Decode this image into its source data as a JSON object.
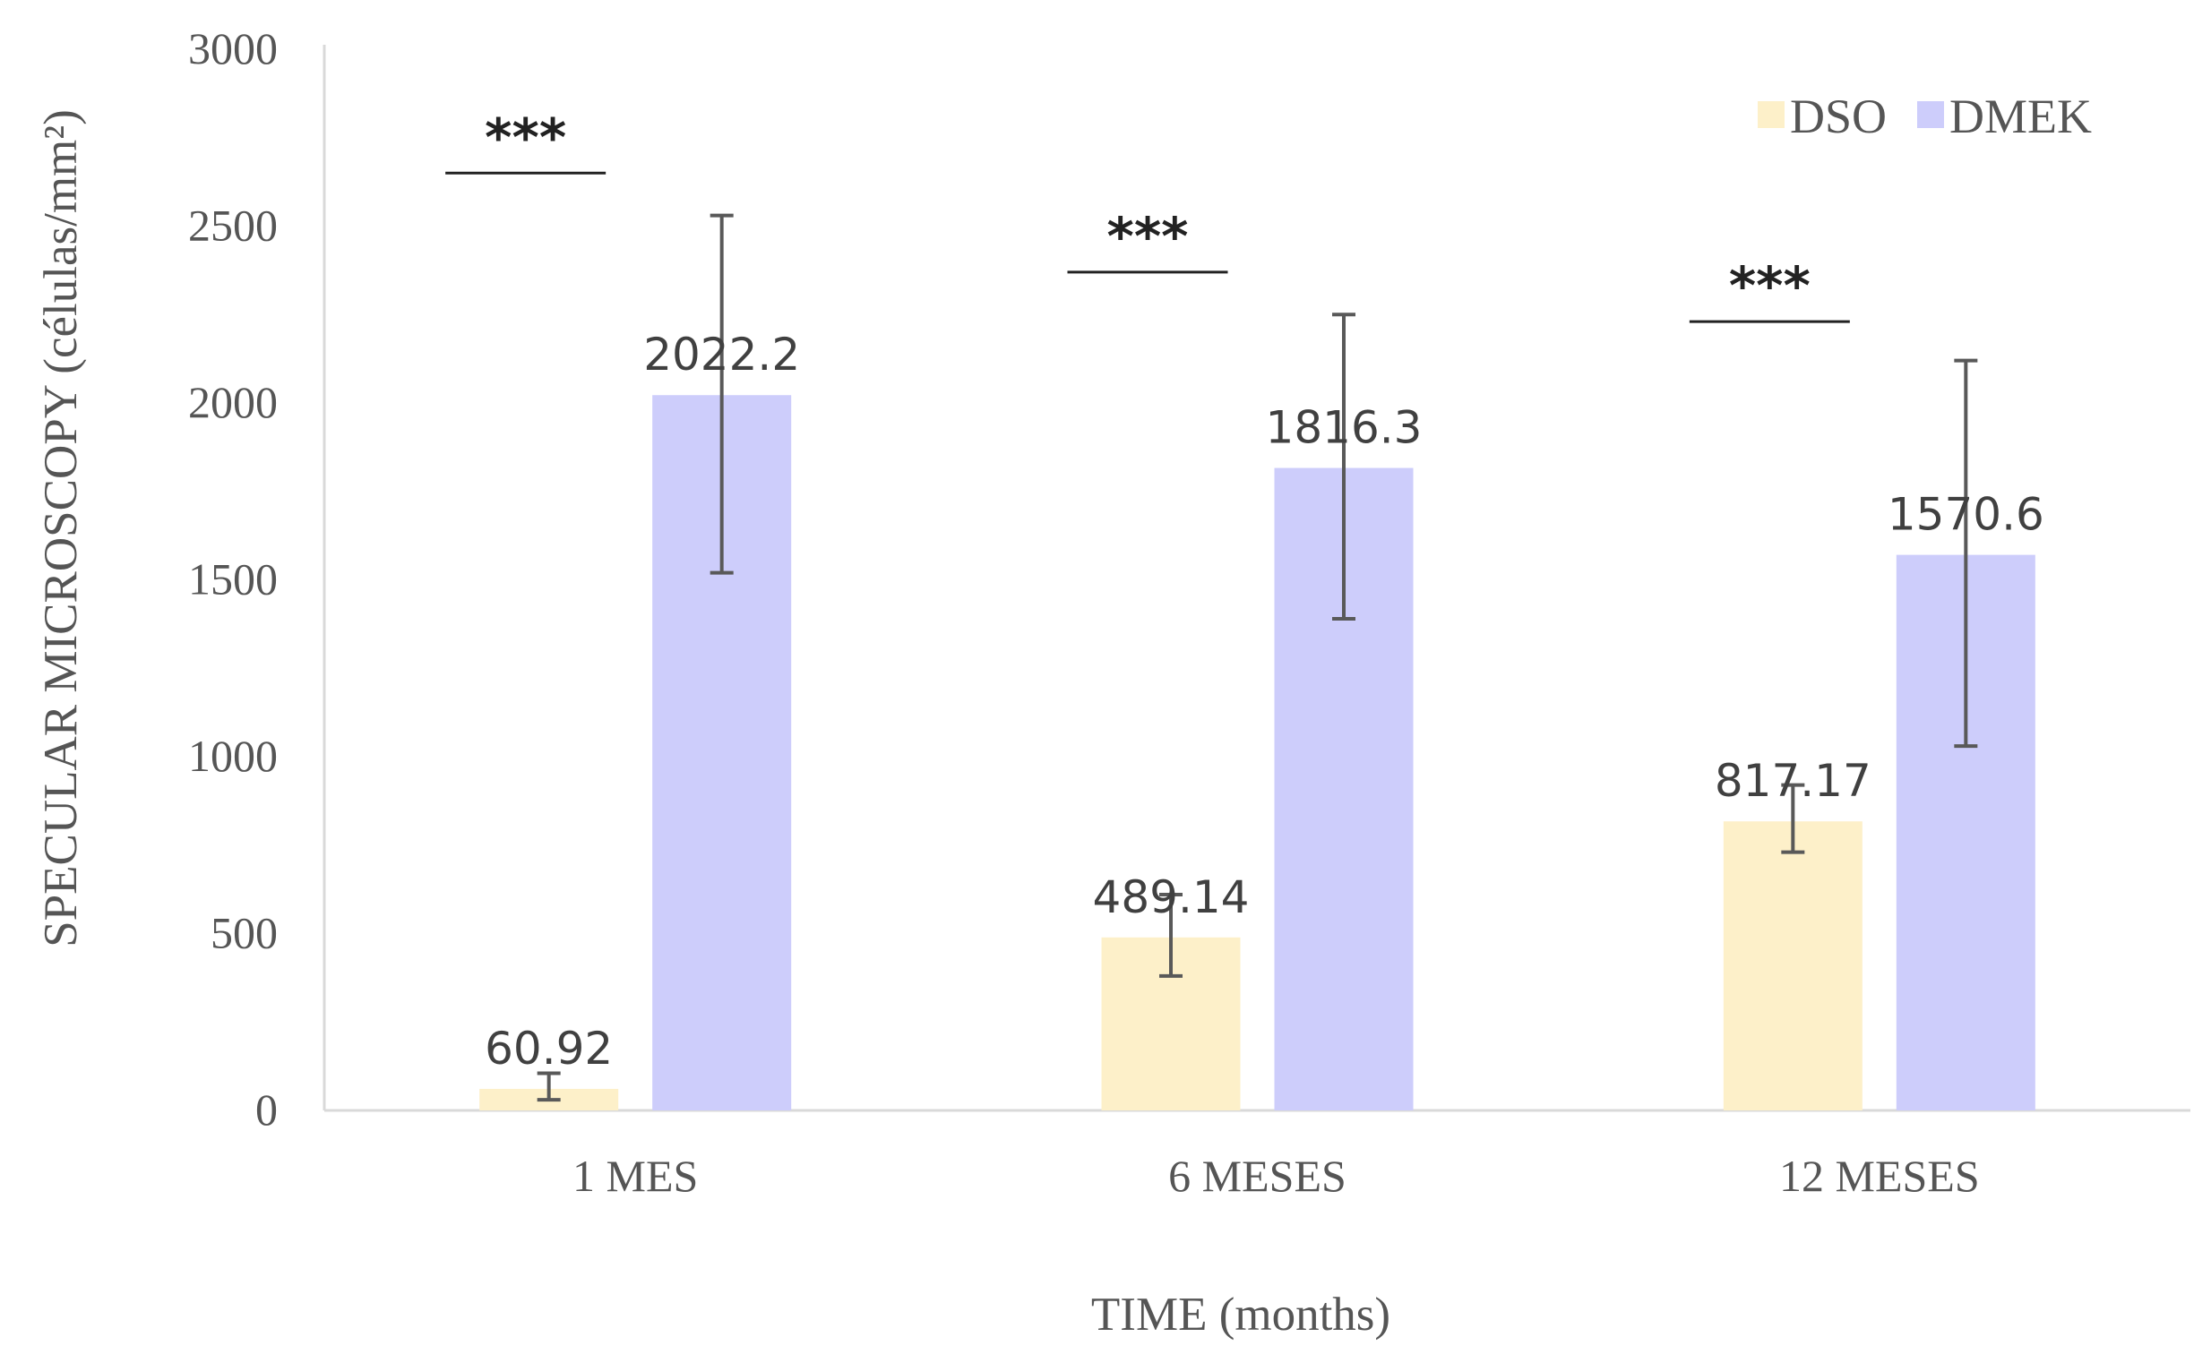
{
  "chart_data": {
    "type": "bar",
    "categories": [
      "1 MES",
      "6 MESES",
      "12 MESES"
    ],
    "series": [
      {
        "name": "DSO",
        "color": "#fdf0c9",
        "values": [
          60.92,
          489.14,
          817.17
        ],
        "labels": [
          "60.92",
          "489.14",
          "817.17"
        ],
        "error_low": [
          30,
          380,
          730
        ],
        "error_high": [
          105,
          610,
          920
        ]
      },
      {
        "name": "DMEK",
        "color": "#cdcdfb",
        "values": [
          2022.2,
          1816.3,
          1570.6
        ],
        "labels": [
          "2022.2",
          "1816.3",
          "1570.6"
        ],
        "error_low": [
          1520,
          1390,
          1030
        ],
        "error_high": [
          2530,
          2250,
          2120
        ]
      }
    ],
    "significance": [
      {
        "category": "1 MES",
        "label": "***",
        "y": 2650
      },
      {
        "category": "6 MESES",
        "label": "***",
        "y": 2370
      },
      {
        "category": "12 MESES",
        "label": "***",
        "y": 2230
      }
    ],
    "ylim": [
      0,
      3000
    ],
    "yticks": [
      "0",
      "500",
      "1000",
      "1500",
      "2000",
      "2500",
      "3000"
    ],
    "xlabel": "TIME (months)",
    "ylabel": "SPECULAR MICROSCOPY (células/mm²)",
    "legend": "top-right",
    "grid": false
  }
}
